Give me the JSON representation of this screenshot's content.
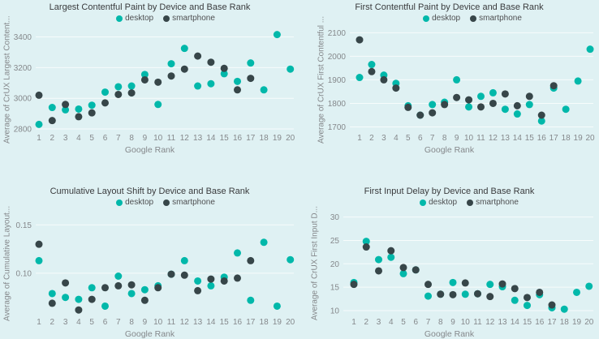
{
  "page": {
    "background": "#dff1f3"
  },
  "colors": {
    "desktop": "#01b8aa",
    "smartphone": "#374649",
    "gridline": "rgba(255,255,255,0.75)",
    "title_text": "#3a3b3d",
    "axis_text": "#85888b"
  },
  "chart_data": [
    {
      "type": "scatter",
      "title": "Largest Contentful Paint by Device and Base Rank",
      "xlabel": "Google Rank",
      "ylabel": "Average of CrUX Largest Content...",
      "x": [
        1,
        2,
        3,
        4,
        5,
        6,
        7,
        8,
        9,
        10,
        11,
        12,
        13,
        14,
        15,
        16,
        17,
        18,
        19,
        20
      ],
      "ylim": [
        2795,
        3450
      ],
      "yticks": [
        2800,
        3000,
        3200,
        3400
      ],
      "ytick_labels": [
        "2800",
        "3000",
        "3200",
        "3400"
      ],
      "grid": true,
      "legend_position": "top",
      "series": [
        {
          "name": "desktop",
          "color": "#01b8aa",
          "values": [
            2830,
            2940,
            2925,
            2930,
            2955,
            3040,
            3075,
            3080,
            3155,
            2960,
            3225,
            3325,
            3080,
            3095,
            3160,
            3110,
            3230,
            3055,
            3415,
            3190
          ]
        },
        {
          "name": "smartphone",
          "color": "#374649",
          "values": [
            3020,
            2855,
            2960,
            2880,
            2905,
            2970,
            3025,
            3035,
            3120,
            3105,
            3145,
            3190,
            3275,
            3235,
            3195,
            3055,
            3130,
            null,
            null,
            null
          ]
        }
      ]
    },
    {
      "type": "scatter",
      "title": "First Contentful Paint by Device and Base Rank",
      "xlabel": "Google Rank",
      "ylabel": "Average of CrUX First Contentful ...",
      "x": [
        1,
        2,
        3,
        4,
        5,
        6,
        7,
        8,
        9,
        10,
        11,
        12,
        13,
        14,
        15,
        16,
        17,
        18,
        19,
        20
      ],
      "ylim": [
        1688,
        2115
      ],
      "yticks": [
        1700,
        1800,
        1900,
        2000,
        2100
      ],
      "ytick_labels": [
        "1700",
        "1800",
        "1900",
        "2000",
        "2100"
      ],
      "grid": true,
      "legend_position": "top",
      "series": [
        {
          "name": "desktop",
          "color": "#01b8aa",
          "values": [
            1910,
            1965,
            1920,
            1885,
            1790,
            1750,
            1795,
            1805,
            1900,
            1785,
            1830,
            1845,
            1775,
            1755,
            1795,
            1725,
            1865,
            1775,
            1895,
            2030
          ]
        },
        {
          "name": "smartphone",
          "color": "#374649",
          "values": [
            2070,
            1935,
            1900,
            1865,
            1783,
            1750,
            1760,
            1795,
            1825,
            1815,
            1785,
            1800,
            1840,
            1790,
            1830,
            1750,
            1875,
            null,
            null,
            null
          ]
        }
      ]
    },
    {
      "type": "scatter",
      "title": "Cumulative Layout Shift by Device and Base Rank",
      "xlabel": "Google Rank",
      "ylabel": "Average of Cumulative Layout...",
      "x": [
        1,
        2,
        3,
        4,
        5,
        6,
        7,
        8,
        9,
        10,
        11,
        12,
        13,
        14,
        15,
        16,
        17,
        18,
        19,
        20
      ],
      "ylim": [
        0.058,
        0.162
      ],
      "yticks": [
        0.1,
        0.15
      ],
      "ytick_labels": [
        "0.10",
        "0.15"
      ],
      "grid": true,
      "legend_position": "top",
      "series": [
        {
          "name": "desktop",
          "color": "#01b8aa",
          "values": [
            0.113,
            0.079,
            0.075,
            0.073,
            0.085,
            0.066,
            0.097,
            0.079,
            0.083,
            0.087,
            0.099,
            0.113,
            0.092,
            0.087,
            0.096,
            0.121,
            0.072,
            0.132,
            0.066,
            0.114
          ]
        },
        {
          "name": "smartphone",
          "color": "#374649",
          "values": [
            0.13,
            0.069,
            0.09,
            0.062,
            0.073,
            0.085,
            0.087,
            0.088,
            0.072,
            0.085,
            0.099,
            0.098,
            0.082,
            0.094,
            0.092,
            0.095,
            0.113,
            null,
            null,
            null
          ]
        }
      ]
    },
    {
      "type": "scatter",
      "title": "First Input Delay by Device and Base Rank",
      "xlabel": "Google Rank",
      "ylabel": "Average of CrUX First Input D...",
      "x": [
        1,
        2,
        3,
        4,
        5,
        6,
        7,
        8,
        9,
        10,
        11,
        12,
        13,
        14,
        15,
        16,
        17,
        18,
        19,
        20
      ],
      "ylim": [
        9.3,
        30.8
      ],
      "yticks": [
        10,
        15,
        20,
        25,
        30
      ],
      "ytick_labels": [
        "10",
        "15",
        "20",
        "25",
        "30"
      ],
      "grid": true,
      "legend_position": "top",
      "series": [
        {
          "name": "desktop",
          "color": "#01b8aa",
          "values": [
            16.0,
            24.8,
            20.9,
            21.4,
            17.9,
            18.7,
            13.1,
            13.5,
            16.0,
            13.5,
            13.6,
            15.6,
            15.1,
            12.2,
            11.1,
            13.4,
            10.6,
            10.3,
            13.9,
            15.2
          ]
        },
        {
          "name": "smartphone",
          "color": "#374649",
          "values": [
            15.6,
            23.6,
            18.5,
            22.8,
            19.2,
            18.7,
            15.6,
            13.5,
            13.4,
            15.9,
            13.6,
            13.0,
            15.7,
            14.7,
            12.8,
            13.9,
            11.2,
            null,
            null,
            null
          ]
        }
      ]
    }
  ]
}
